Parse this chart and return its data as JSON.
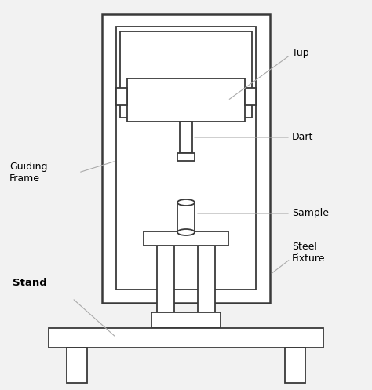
{
  "fig_width": 4.74,
  "fig_height": 4.97,
  "dpi": 100,
  "bg_color": "#f2f2f2",
  "fc": "white",
  "lc": "#3a3a3a",
  "ac": "#aaaaaa",
  "lw": 1.3,
  "alw": 0.8,
  "fs": 8.5,
  "labels": {
    "tup": "Tup",
    "dart": "Dart",
    "guiding_frame": "Guiding\nFrame",
    "sample": "Sample",
    "steel_fixture": "Steel\nFixture",
    "stand": "Stand"
  }
}
